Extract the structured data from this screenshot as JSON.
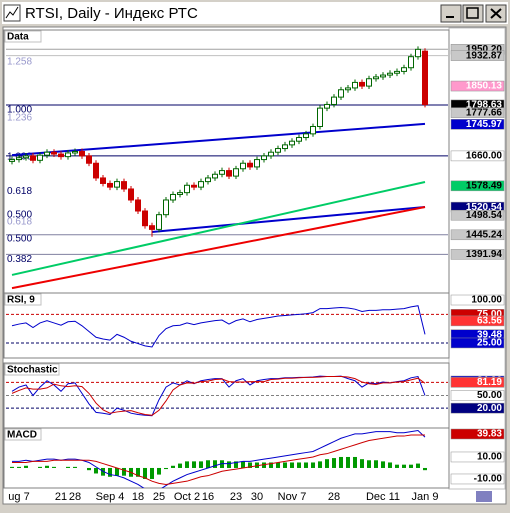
{
  "window": {
    "title": "RTSI, Daily - Индекс РТС"
  },
  "chart_data": [
    {
      "type": "candlestick",
      "title": "Data",
      "categories": [
        null,
        "ug 7",
        null,
        null,
        null,
        null,
        null,
        "21",
        null,
        "28",
        null,
        null,
        null,
        null,
        "Sep 4",
        null,
        null,
        null,
        "18",
        null,
        null,
        "25",
        null,
        null,
        null,
        "Oct 2",
        null,
        null,
        "16",
        null,
        null,
        null,
        "23",
        null,
        null,
        "30",
        null,
        null,
        null,
        null,
        "Nov 7",
        null,
        null,
        null,
        null,
        null,
        "28",
        null,
        null,
        null,
        null,
        null,
        null,
        "Dec 11",
        null,
        null,
        null,
        null,
        null,
        "Jan 9"
      ],
      "open": [
        1645,
        1650,
        1655,
        1660,
        1648,
        1662,
        1670,
        1665,
        1658,
        1668,
        1672,
        1660,
        1640,
        1600,
        1585,
        1575,
        1590,
        1570,
        1540,
        1510,
        1470,
        1460,
        1500,
        1540,
        1555,
        1560,
        1580,
        1575,
        1590,
        1600,
        1610,
        1620,
        1605,
        1625,
        1640,
        1630,
        1650,
        1660,
        1670,
        1680,
        1690,
        1700,
        1710,
        1720,
        1740,
        1790,
        1800,
        1820,
        1840,
        1845,
        1860,
        1850,
        1870,
        1875,
        1880,
        1885,
        1890,
        1900,
        1930,
        1945
      ],
      "high": [
        1658,
        1663,
        1668,
        1668,
        1670,
        1678,
        1678,
        1673,
        1676,
        1680,
        1680,
        1668,
        1648,
        1608,
        1593,
        1598,
        1598,
        1578,
        1548,
        1518,
        1478,
        1508,
        1548,
        1563,
        1568,
        1588,
        1588,
        1598,
        1608,
        1618,
        1628,
        1628,
        1633,
        1648,
        1648,
        1658,
        1668,
        1678,
        1688,
        1698,
        1708,
        1718,
        1728,
        1748,
        1798,
        1808,
        1828,
        1848,
        1853,
        1868,
        1868,
        1878,
        1883,
        1888,
        1893,
        1898,
        1908,
        1938,
        1958,
        1953
      ],
      "low": [
        1637,
        1642,
        1647,
        1640,
        1640,
        1654,
        1657,
        1650,
        1650,
        1660,
        1652,
        1632,
        1592,
        1577,
        1567,
        1567,
        1562,
        1532,
        1502,
        1462,
        1440,
        1452,
        1492,
        1532,
        1547,
        1552,
        1567,
        1567,
        1582,
        1592,
        1602,
        1597,
        1597,
        1617,
        1622,
        1622,
        1642,
        1652,
        1662,
        1672,
        1682,
        1692,
        1702,
        1712,
        1732,
        1782,
        1792,
        1812,
        1832,
        1837,
        1842,
        1842,
        1862,
        1867,
        1872,
        1877,
        1882,
        1892,
        1922,
        1792
      ],
      "close": [
        1650,
        1655,
        1660,
        1648,
        1662,
        1670,
        1665,
        1658,
        1668,
        1672,
        1660,
        1640,
        1600,
        1585,
        1575,
        1590,
        1570,
        1540,
        1510,
        1470,
        1460,
        1500,
        1540,
        1555,
        1560,
        1580,
        1575,
        1590,
        1600,
        1610,
        1620,
        1605,
        1625,
        1640,
        1630,
        1650,
        1660,
        1670,
        1680,
        1690,
        1700,
        1710,
        1720,
        1740,
        1790,
        1800,
        1820,
        1840,
        1845,
        1860,
        1850,
        1870,
        1875,
        1880,
        1885,
        1890,
        1900,
        1930,
        1950,
        1800
      ],
      "up_color": "#006600",
      "down_color": "#cc0000",
      "ylim": [
        1295,
        1970
      ],
      "lines": [
        {
          "color": "#0000cc",
          "x": [
            0,
            59
          ],
          "values": [
            1662,
            1747
          ]
        },
        {
          "color": "#0000cc",
          "x": [
            20,
            59
          ],
          "values": [
            1453,
            1521
          ]
        },
        {
          "color": "#ee0000",
          "x": [
            0,
            59
          ],
          "values": [
            1300,
            1521
          ]
        },
        {
          "color": "#00cc66",
          "x": [
            0,
            59
          ],
          "values": [
            1336,
            1589
          ]
        }
      ],
      "fib_labels": [
        {
          "value": 1916,
          "label": "1.258",
          "color": "#9999cc"
        },
        {
          "value": 1785,
          "label": "1.000",
          "color": "#000066"
        },
        {
          "value": 1763,
          "label": "1.236",
          "color": "#9999cc"
        },
        {
          "value": 1657,
          "label": "1.000",
          "color": "#000066"
        },
        {
          "value": 1564,
          "label": "0.618",
          "color": "#000066"
        },
        {
          "value": 1499,
          "label": "0.500",
          "color": "#000066"
        },
        {
          "value": 1480,
          "label": "0.618",
          "color": "#9999cc"
        },
        {
          "value": 1434,
          "label": "0.500",
          "color": "#000066"
        },
        {
          "value": 1379,
          "label": "0.382",
          "color": "#000066"
        }
      ],
      "right_labels": [
        {
          "value": 1950.2,
          "label": "1950.20",
          "bg": "#c8c8c8",
          "fg": "#000000",
          "line": "#a0a0a0"
        },
        {
          "value": 1932.87,
          "label": "1932.87",
          "bg": "#c8c8c8",
          "fg": "#000000",
          "line": "#c0c0c0"
        },
        {
          "value": 1850.13,
          "label": "1850.13",
          "bg": "#ff99cc",
          "fg": "#ffffff"
        },
        {
          "value": 1798.63,
          "label": "1798.63",
          "bg": "#000000",
          "fg": "#ffffff",
          "line": "#000066"
        },
        {
          "value": 1777.66,
          "label": "1777.66",
          "bg": "#c8c8c8",
          "fg": "#000000"
        },
        {
          "value": 1745.97,
          "label": "1745.97",
          "bg": "#0000cc",
          "fg": "#ffffff"
        },
        {
          "value": 1660,
          "label": "1660.00",
          "bg": "#ffffff",
          "fg": "#000000",
          "line": "#000066"
        },
        {
          "value": 1578.49,
          "label": "1578.49",
          "bg": "#00cc66",
          "fg": "#000000"
        },
        {
          "value": 1520.54,
          "label": "1520.54",
          "bg": "#000080",
          "fg": "#ffffff"
        },
        {
          "value": 1498.54,
          "label": "1498.54",
          "bg": "#c8c8c8",
          "fg": "#000000"
        },
        {
          "value": 1445.24,
          "label": "1445.24",
          "bg": "#c8c8c8",
          "fg": "#000000",
          "line": "#8080a0"
        },
        {
          "value": 1391.94,
          "label": "1391.94",
          "bg": "#c8c8c8",
          "fg": "#000000",
          "line": "#8080a0"
        }
      ]
    },
    {
      "type": "line",
      "title": "RSI, 9",
      "ylim": [
        4,
        107
      ],
      "series": [
        {
          "color": "#0000cc",
          "values": [
            55,
            58,
            60,
            52,
            60,
            64,
            60,
            56,
            62,
            63,
            55,
            45,
            35,
            32,
            30,
            40,
            35,
            28,
            24,
            20,
            18,
            38,
            50,
            55,
            56,
            60,
            57,
            60,
            62,
            64,
            65,
            58,
            64,
            67,
            62,
            66,
            68,
            70,
            72,
            73,
            74,
            75,
            76,
            78,
            85,
            85,
            86,
            87,
            86,
            84,
            80,
            82,
            82,
            83,
            83,
            84,
            85,
            88,
            90,
            40
          ]
        }
      ],
      "right_labels": [
        {
          "value": 100,
          "label": "100.00",
          "bg": "#ffffff",
          "fg": "#000000"
        },
        {
          "value": 75,
          "label": "75.00",
          "bg": "#cc0000",
          "fg": "#ffffff",
          "line": "#cc0000"
        },
        {
          "value": 63.56,
          "label": "63.56",
          "bg": "#ff3333",
          "fg": "#ffffff"
        },
        {
          "value": 39.48,
          "label": "39.48",
          "bg": "#0000cc",
          "fg": "#ffffff"
        },
        {
          "value": 25,
          "label": "25.00",
          "bg": "#0000cc",
          "fg": "#ffffff",
          "line": "#000066"
        }
      ]
    },
    {
      "type": "line",
      "title": "Stochastic",
      "ylim": [
        -20,
        120
      ],
      "series": [
        {
          "color": "#0000cc",
          "values": [
            60,
            70,
            75,
            50,
            70,
            85,
            75,
            60,
            78,
            80,
            55,
            30,
            10,
            8,
            5,
            20,
            15,
            8,
            5,
            3,
            2,
            40,
            70,
            80,
            75,
            85,
            78,
            85,
            88,
            90,
            90,
            70,
            85,
            90,
            75,
            85,
            88,
            90,
            90,
            92,
            92,
            93,
            93,
            94,
            96,
            95,
            95,
            96,
            90,
            85,
            70,
            80,
            78,
            82,
            80,
            83,
            85,
            92,
            95,
            50
          ]
        },
        {
          "color": "#cc0000",
          "values": [
            55,
            62,
            68,
            65,
            65,
            68,
            77,
            73,
            71,
            73,
            71,
            55,
            32,
            16,
            8,
            11,
            13,
            14,
            9,
            5,
            3,
            15,
            37,
            63,
            75,
            80,
            79,
            83,
            84,
            88,
            89,
            83,
            82,
            82,
            83,
            83,
            83,
            88,
            89,
            91,
            91,
            92,
            93,
            93,
            94,
            95,
            95,
            95,
            94,
            90,
            82,
            78,
            76,
            80,
            80,
            82,
            83,
            87,
            91,
            79
          ]
        }
      ],
      "right_labels": [
        {
          "value": 84.36,
          "label": "84.36",
          "bg": "#0000cc",
          "fg": "#ffffff"
        },
        {
          "value": 81.19,
          "label": "81.19",
          "bg": "#ff3333",
          "fg": "#ffffff",
          "line": "#cc0000"
        },
        {
          "value": 50,
          "label": "50.00",
          "bg": "#ffffff",
          "fg": "#000000",
          "line": "#808080"
        },
        {
          "value": 20,
          "label": "20.00",
          "bg": "#000080",
          "fg": "#ffffff",
          "line": "#000066"
        }
      ]
    },
    {
      "type": "line",
      "title": "MACD",
      "ylim": [
        -18.2,
        33.6
      ],
      "series": [
        {
          "kind": "bar",
          "color": "#009900",
          "values": [
            1,
            1,
            2,
            0,
            1,
            2,
            1,
            0,
            1,
            1,
            0,
            -2,
            -5,
            -7,
            -8,
            -7,
            -7,
            -8,
            -8,
            -10,
            -10,
            -6,
            -1,
            2,
            4,
            6,
            6,
            6,
            7,
            7,
            7,
            6,
            6,
            6,
            5,
            5,
            5,
            5,
            5,
            5,
            5,
            5,
            5,
            5,
            6,
            8,
            9,
            10,
            10,
            10,
            8,
            7,
            7,
            6,
            5,
            3,
            3,
            3,
            4,
            -2
          ]
        },
        {
          "color": "#0000cc",
          "values": [
            6,
            6,
            7,
            6,
            7,
            8,
            8,
            7,
            8,
            8,
            7,
            5,
            1,
            -3,
            -6,
            -7,
            -9,
            -12,
            -15,
            -19,
            -22,
            -20,
            -16,
            -12,
            -9,
            -6,
            -4,
            -2,
            0,
            2,
            4,
            4,
            5,
            6,
            6,
            7,
            8,
            9,
            10,
            11,
            12,
            13,
            14,
            15,
            18,
            21,
            24,
            27,
            29,
            31,
            31,
            32,
            33,
            33,
            33,
            32,
            32,
            33,
            34,
            28
          ]
        },
        {
          "color": "#cc0000",
          "values": [
            5,
            5,
            5,
            6,
            6,
            6,
            7,
            7,
            7,
            7,
            7,
            7,
            6,
            4,
            2,
            0,
            -2,
            -4,
            -7,
            -9,
            -12,
            -14,
            -15,
            -14,
            -13,
            -12,
            -10,
            -8,
            -7,
            -5,
            -3,
            -2,
            -1,
            0,
            1,
            2,
            3,
            4,
            5,
            6,
            7,
            8,
            9,
            10,
            12,
            13,
            15,
            17,
            19,
            21,
            23,
            25,
            26,
            27,
            28,
            29,
            29,
            30,
            30,
            30
          ]
        }
      ],
      "right_labels": [
        {
          "value": 39.83,
          "label": "39.83",
          "bg": "#cc0000",
          "fg": "#ffffff"
        },
        {
          "value": 10,
          "label": "10.00",
          "bg": "#ffffff",
          "fg": "#000000"
        },
        {
          "value": -10,
          "label": "-10.00",
          "bg": "#ffffff",
          "fg": "#000000"
        }
      ]
    }
  ]
}
